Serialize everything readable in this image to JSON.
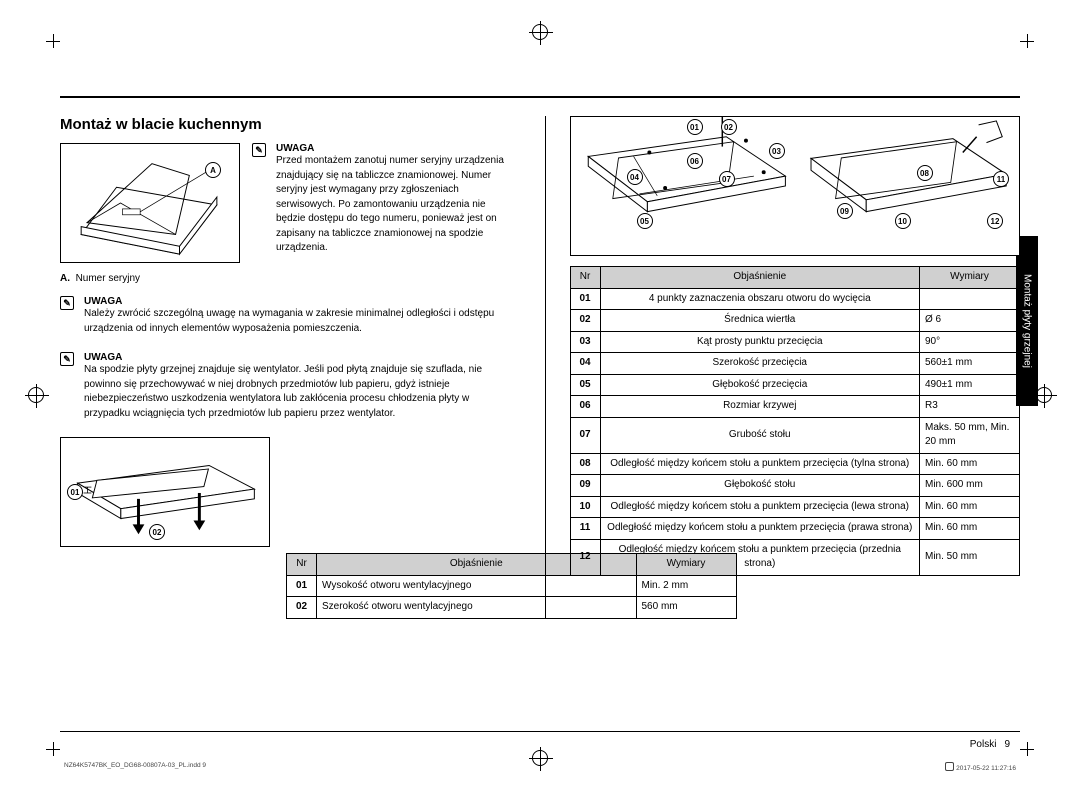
{
  "section_title": "Montaż w blacie kuchennym",
  "sidetab": "Montaż płyty grzejnej",
  "fig1": {
    "label_letter": "A",
    "legend_letter": "A.",
    "legend_text": "Numer seryjny"
  },
  "notes": [
    {
      "title": "UWAGA",
      "body": "Przed montażem zanotuj numer seryjny urządzenia znajdujący się na tabliczce znamionowej. Numer seryjny jest wymagany przy zgłoszeniach serwisowych. Po zamontowaniu urządzenia nie będzie dostępu do tego numeru, ponieważ jest on zapisany na tabliczce znamionowej na spodzie urządzenia."
    },
    {
      "title": "UWAGA",
      "body": "Należy zwrócić szczególną uwagę na wymagania w zakresie minimalnej odległości i odstępu urządzenia od innych elementów wyposażenia pomieszczenia."
    },
    {
      "title": "UWAGA",
      "body": "Na spodzie płyty grzejnej znajduje się wentylator. Jeśli pod płytą znajduje się szuflada, nie powinno się przechowywać w niej drobnych przedmiotów lub papieru, gdyż istnieje niebezpieczeństwo uszkodzenia wentylatora lub zakłócenia procesu chłodzenia płyty w przypadku wciągnięcia tych przedmiotów lub papieru przez wentylator."
    }
  ],
  "table1": {
    "headers": [
      "Nr",
      "Objaśnienie",
      "Wymiary"
    ],
    "rows": [
      {
        "nr": "01",
        "desc": "Wysokość otworu wentylacyjnego",
        "dim": "Min. 2 mm"
      },
      {
        "nr": "02",
        "desc": "Szerokość otworu wentylacyjnego",
        "dim": "560 mm"
      }
    ]
  },
  "fig2_callouts": [
    "01",
    "02"
  ],
  "fig3_callouts": [
    "01",
    "02",
    "03",
    "04",
    "05",
    "06",
    "07",
    "08",
    "09",
    "10",
    "11",
    "12"
  ],
  "table2": {
    "headers": [
      "Nr",
      "Objaśnienie",
      "Wymiary"
    ],
    "rows": [
      {
        "nr": "01",
        "desc": "4 punkty zaznaczenia obszaru otworu do wycięcia",
        "dim": ""
      },
      {
        "nr": "02",
        "desc": "Średnica wiertła",
        "dim": "Ø 6"
      },
      {
        "nr": "03",
        "desc": "Kąt prosty punktu przecięcia",
        "dim": "90°"
      },
      {
        "nr": "04",
        "desc": "Szerokość przecięcia",
        "dim": "560±1 mm"
      },
      {
        "nr": "05",
        "desc": "Głębokość przecięcia",
        "dim": "490±1 mm"
      },
      {
        "nr": "06",
        "desc": "Rozmiar krzywej",
        "dim": "R3"
      },
      {
        "nr": "07",
        "desc": "Grubość stołu",
        "dim": "Maks. 50 mm, Min. 20 mm"
      },
      {
        "nr": "08",
        "desc": "Odległość między końcem stołu a punktem przecięcia (tylna strona)",
        "dim": "Min. 60 mm"
      },
      {
        "nr": "09",
        "desc": "Głębokość stołu",
        "dim": "Min. 600 mm"
      },
      {
        "nr": "10",
        "desc": "Odległość między końcem stołu a punktem przecięcia (lewa strona)",
        "dim": "Min. 60 mm"
      },
      {
        "nr": "11",
        "desc": "Odległość między końcem stołu a punktem przecięcia (prawa strona)",
        "dim": "Min. 60 mm"
      },
      {
        "nr": "12",
        "desc": "Odległość między końcem stołu a punktem przecięcia (przednia strona)",
        "dim": "Min. 50 mm"
      }
    ]
  },
  "footer": {
    "lang": "Polski",
    "page": "9"
  },
  "printfoot": {
    "left": "NZ64K5747BK_EO_DG68-00807A-03_PL.indd   9",
    "right": "2017-05-22    11:27:16"
  }
}
